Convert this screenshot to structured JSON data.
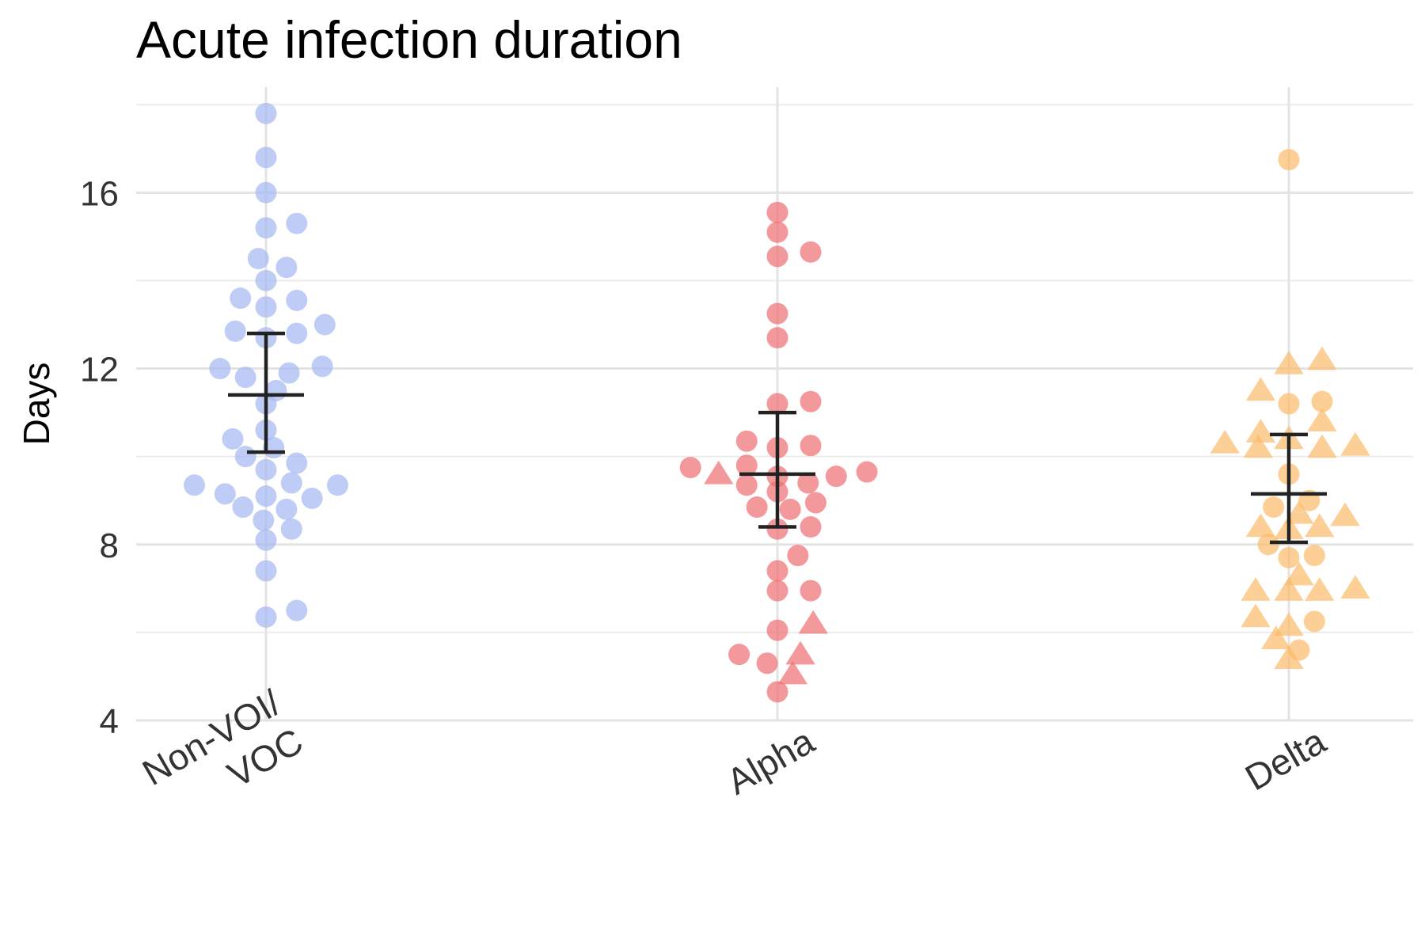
{
  "chart_data": {
    "type": "scatter",
    "title": "Acute infection duration",
    "xlabel": "",
    "ylabel": "Days",
    "ylim": [
      4,
      18.4
    ],
    "yticks": [
      4,
      8,
      12,
      16
    ],
    "categories": [
      {
        "lines": [
          "Non-VOI/",
          "VOC"
        ]
      },
      {
        "lines": [
          "Alpha"
        ]
      },
      {
        "lines": [
          "Delta"
        ]
      }
    ],
    "grid": true,
    "legend": "none",
    "colors": [
      "#a4b8f2",
      "#ee6d72",
      "#fbbb6a"
    ],
    "series": [
      {
        "category_index": 0,
        "mean": 11.4,
        "ci": [
          10.1,
          12.8
        ],
        "points": [
          {
            "dx": 0.0,
            "y": 17.8,
            "shape": "circle"
          },
          {
            "dx": 0.0,
            "y": 16.8,
            "shape": "circle"
          },
          {
            "dx": 0.0,
            "y": 16.0,
            "shape": "circle"
          },
          {
            "dx": 0.0,
            "y": 15.2,
            "shape": "circle"
          },
          {
            "dx": 0.06,
            "y": 15.3,
            "shape": "circle"
          },
          {
            "dx": -0.015,
            "y": 14.5,
            "shape": "circle"
          },
          {
            "dx": 0.04,
            "y": 14.3,
            "shape": "circle"
          },
          {
            "dx": 0.0,
            "y": 14.0,
            "shape": "circle"
          },
          {
            "dx": -0.05,
            "y": 13.6,
            "shape": "circle"
          },
          {
            "dx": 0.06,
            "y": 13.55,
            "shape": "circle"
          },
          {
            "dx": 0.0,
            "y": 13.4,
            "shape": "circle"
          },
          {
            "dx": 0.115,
            "y": 13.0,
            "shape": "circle"
          },
          {
            "dx": -0.06,
            "y": 12.85,
            "shape": "circle"
          },
          {
            "dx": 0.06,
            "y": 12.8,
            "shape": "circle"
          },
          {
            "dx": 0.0,
            "y": 12.7,
            "shape": "circle"
          },
          {
            "dx": -0.09,
            "y": 12.0,
            "shape": "circle"
          },
          {
            "dx": 0.11,
            "y": 12.05,
            "shape": "circle"
          },
          {
            "dx": 0.045,
            "y": 11.9,
            "shape": "circle"
          },
          {
            "dx": -0.04,
            "y": 11.8,
            "shape": "circle"
          },
          {
            "dx": 0.02,
            "y": 11.5,
            "shape": "circle"
          },
          {
            "dx": 0.0,
            "y": 11.2,
            "shape": "circle"
          },
          {
            "dx": 0.0,
            "y": 10.6,
            "shape": "circle"
          },
          {
            "dx": -0.065,
            "y": 10.4,
            "shape": "circle"
          },
          {
            "dx": 0.015,
            "y": 10.2,
            "shape": "circle"
          },
          {
            "dx": -0.04,
            "y": 10.0,
            "shape": "circle"
          },
          {
            "dx": 0.06,
            "y": 9.85,
            "shape": "circle"
          },
          {
            "dx": 0.0,
            "y": 9.7,
            "shape": "circle"
          },
          {
            "dx": 0.05,
            "y": 9.4,
            "shape": "circle"
          },
          {
            "dx": -0.14,
            "y": 9.35,
            "shape": "circle"
          },
          {
            "dx": 0.14,
            "y": 9.35,
            "shape": "circle"
          },
          {
            "dx": -0.08,
            "y": 9.15,
            "shape": "circle"
          },
          {
            "dx": 0.0,
            "y": 9.1,
            "shape": "circle"
          },
          {
            "dx": 0.09,
            "y": 9.05,
            "shape": "circle"
          },
          {
            "dx": -0.045,
            "y": 8.85,
            "shape": "circle"
          },
          {
            "dx": 0.04,
            "y": 8.8,
            "shape": "circle"
          },
          {
            "dx": -0.005,
            "y": 8.55,
            "shape": "circle"
          },
          {
            "dx": 0.05,
            "y": 8.35,
            "shape": "circle"
          },
          {
            "dx": 0.0,
            "y": 8.1,
            "shape": "circle"
          },
          {
            "dx": 0.0,
            "y": 7.4,
            "shape": "circle"
          },
          {
            "dx": 0.06,
            "y": 6.5,
            "shape": "circle"
          },
          {
            "dx": 0.0,
            "y": 6.35,
            "shape": "circle"
          }
        ]
      },
      {
        "category_index": 1,
        "mean": 9.6,
        "ci": [
          8.4,
          11.0
        ],
        "points": [
          {
            "dx": 0.0,
            "y": 15.55,
            "shape": "circle"
          },
          {
            "dx": 0.0,
            "y": 15.1,
            "shape": "circle"
          },
          {
            "dx": 0.065,
            "y": 14.65,
            "shape": "circle"
          },
          {
            "dx": 0.0,
            "y": 14.55,
            "shape": "circle"
          },
          {
            "dx": 0.0,
            "y": 13.25,
            "shape": "circle"
          },
          {
            "dx": 0.0,
            "y": 12.7,
            "shape": "circle"
          },
          {
            "dx": 0.0,
            "y": 11.2,
            "shape": "circle"
          },
          {
            "dx": 0.065,
            "y": 11.25,
            "shape": "circle"
          },
          {
            "dx": -0.06,
            "y": 10.35,
            "shape": "circle"
          },
          {
            "dx": 0.065,
            "y": 10.25,
            "shape": "circle"
          },
          {
            "dx": 0.0,
            "y": 10.2,
            "shape": "circle"
          },
          {
            "dx": -0.06,
            "y": 9.8,
            "shape": "circle"
          },
          {
            "dx": -0.17,
            "y": 9.75,
            "shape": "circle"
          },
          {
            "dx": 0.175,
            "y": 9.65,
            "shape": "circle"
          },
          {
            "dx": -0.115,
            "y": 9.6,
            "shape": "triangle"
          },
          {
            "dx": 0.115,
            "y": 9.55,
            "shape": "circle"
          },
          {
            "dx": 0.0,
            "y": 9.55,
            "shape": "circle"
          },
          {
            "dx": -0.06,
            "y": 9.35,
            "shape": "circle"
          },
          {
            "dx": 0.06,
            "y": 9.4,
            "shape": "circle"
          },
          {
            "dx": 0.0,
            "y": 9.2,
            "shape": "circle"
          },
          {
            "dx": 0.075,
            "y": 8.95,
            "shape": "circle"
          },
          {
            "dx": -0.04,
            "y": 8.85,
            "shape": "circle"
          },
          {
            "dx": 0.025,
            "y": 8.8,
            "shape": "circle"
          },
          {
            "dx": 0.065,
            "y": 8.4,
            "shape": "circle"
          },
          {
            "dx": 0.0,
            "y": 8.35,
            "shape": "circle"
          },
          {
            "dx": 0.04,
            "y": 7.75,
            "shape": "circle"
          },
          {
            "dx": 0.0,
            "y": 7.4,
            "shape": "circle"
          },
          {
            "dx": 0.065,
            "y": 6.95,
            "shape": "circle"
          },
          {
            "dx": 0.0,
            "y": 6.95,
            "shape": "circle"
          },
          {
            "dx": 0.07,
            "y": 6.2,
            "shape": "triangle"
          },
          {
            "dx": 0.0,
            "y": 6.05,
            "shape": "circle"
          },
          {
            "dx": -0.075,
            "y": 5.5,
            "shape": "circle"
          },
          {
            "dx": 0.045,
            "y": 5.5,
            "shape": "triangle"
          },
          {
            "dx": -0.02,
            "y": 5.3,
            "shape": "circle"
          },
          {
            "dx": 0.03,
            "y": 5.05,
            "shape": "triangle"
          },
          {
            "dx": 0.0,
            "y": 4.65,
            "shape": "circle"
          }
        ]
      },
      {
        "category_index": 2,
        "mean": 9.15,
        "ci": [
          8.05,
          10.5
        ],
        "points": [
          {
            "dx": 0.0,
            "y": 16.75,
            "shape": "circle"
          },
          {
            "dx": 0.065,
            "y": 12.2,
            "shape": "triangle"
          },
          {
            "dx": 0.0,
            "y": 12.1,
            "shape": "triangle"
          },
          {
            "dx": -0.055,
            "y": 11.5,
            "shape": "triangle"
          },
          {
            "dx": 0.0,
            "y": 11.2,
            "shape": "circle"
          },
          {
            "dx": 0.065,
            "y": 11.25,
            "shape": "circle"
          },
          {
            "dx": 0.065,
            "y": 10.8,
            "shape": "triangle"
          },
          {
            "dx": -0.055,
            "y": 10.55,
            "shape": "triangle"
          },
          {
            "dx": 0.0,
            "y": 10.4,
            "shape": "triangle"
          },
          {
            "dx": -0.125,
            "y": 10.3,
            "shape": "triangle"
          },
          {
            "dx": 0.13,
            "y": 10.25,
            "shape": "triangle"
          },
          {
            "dx": -0.06,
            "y": 10.2,
            "shape": "triangle"
          },
          {
            "dx": 0.065,
            "y": 10.2,
            "shape": "triangle"
          },
          {
            "dx": 0.0,
            "y": 9.6,
            "shape": "circle"
          },
          {
            "dx": 0.04,
            "y": 9.0,
            "shape": "circle"
          },
          {
            "dx": -0.03,
            "y": 8.85,
            "shape": "circle"
          },
          {
            "dx": 0.02,
            "y": 8.7,
            "shape": "triangle"
          },
          {
            "dx": 0.11,
            "y": 8.65,
            "shape": "triangle"
          },
          {
            "dx": -0.055,
            "y": 8.4,
            "shape": "triangle"
          },
          {
            "dx": 0.06,
            "y": 8.4,
            "shape": "triangle"
          },
          {
            "dx": 0.0,
            "y": 8.35,
            "shape": "triangle"
          },
          {
            "dx": -0.04,
            "y": 8.0,
            "shape": "circle"
          },
          {
            "dx": 0.05,
            "y": 7.75,
            "shape": "circle"
          },
          {
            "dx": 0.0,
            "y": 7.7,
            "shape": "circle"
          },
          {
            "dx": 0.02,
            "y": 7.3,
            "shape": "triangle"
          },
          {
            "dx": -0.065,
            "y": 6.95,
            "shape": "triangle"
          },
          {
            "dx": 0.0,
            "y": 6.95,
            "shape": "triangle"
          },
          {
            "dx": 0.06,
            "y": 6.95,
            "shape": "triangle"
          },
          {
            "dx": 0.13,
            "y": 7.0,
            "shape": "triangle"
          },
          {
            "dx": -0.065,
            "y": 6.35,
            "shape": "triangle"
          },
          {
            "dx": 0.0,
            "y": 6.15,
            "shape": "triangle"
          },
          {
            "dx": 0.05,
            "y": 6.25,
            "shape": "circle"
          },
          {
            "dx": -0.025,
            "y": 5.85,
            "shape": "triangle"
          },
          {
            "dx": 0.02,
            "y": 5.6,
            "shape": "circle"
          },
          {
            "dx": 0.0,
            "y": 5.4,
            "shape": "triangle"
          }
        ]
      }
    ]
  }
}
